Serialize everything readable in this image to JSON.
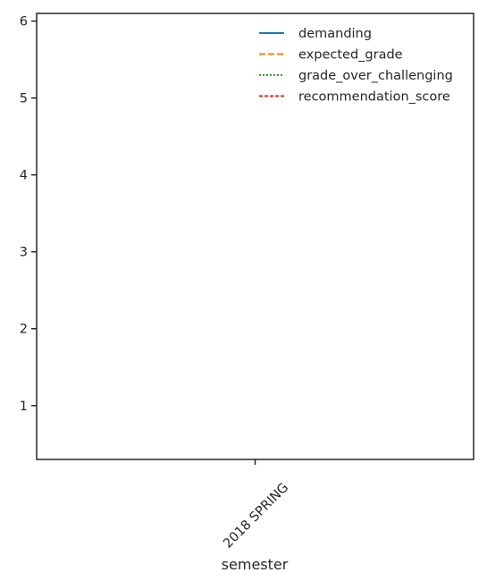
{
  "chart_data": {
    "type": "line",
    "title": "",
    "xlabel": "semester",
    "ylabel": "",
    "categories": [
      "2018 SPRING"
    ],
    "ylim": [
      0.3,
      6.1
    ],
    "yticks": [
      1,
      2,
      3,
      4,
      5,
      6
    ],
    "grid": false,
    "legend_position": "upper-right",
    "series": [
      {
        "name": "demanding",
        "color": "#1f77b4",
        "dash": "solid",
        "values": [
          null
        ]
      },
      {
        "name": "expected_grade",
        "color": "#ff7f0e",
        "dash": "dashed",
        "values": [
          null
        ]
      },
      {
        "name": "grade_over_challenging",
        "color": "#2ca02c",
        "dash": "dotted",
        "values": [
          null
        ]
      },
      {
        "name": "recommendation_score",
        "color": "#d62728",
        "dash": "dashdot-short",
        "values": [
          null
        ]
      }
    ]
  }
}
